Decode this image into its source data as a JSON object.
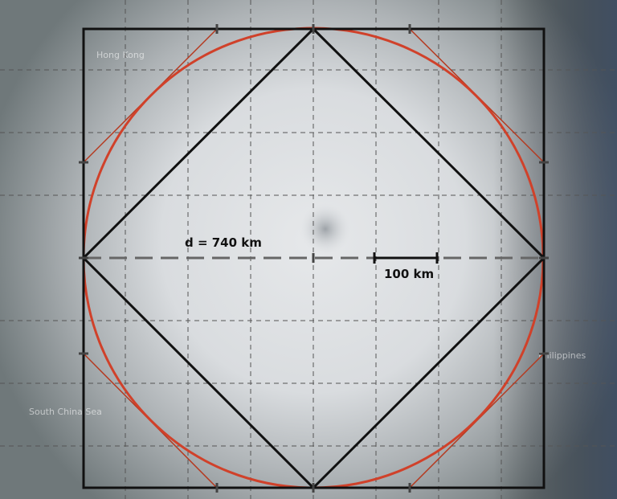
{
  "diameter_label": "d = 740 km",
  "scale_label": "100 km",
  "map_labels": [
    "Hong Kong",
    "Philippines",
    "South China Sea"
  ]
}
